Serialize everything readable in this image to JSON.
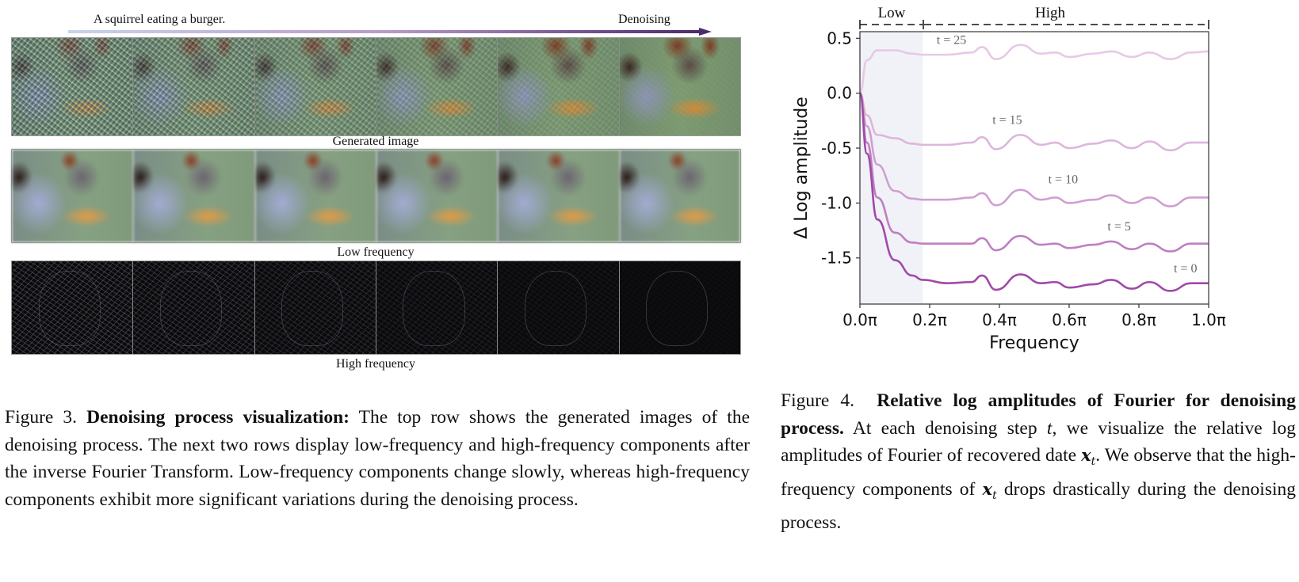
{
  "figure3": {
    "prompt": "A squirrel eating a burger.",
    "arrow_label": "Denoising",
    "arrow_gradient": [
      "#c9d3ea",
      "#b89bcc",
      "#4b2a6e"
    ],
    "rows": [
      {
        "label": "Generated image",
        "frames": 6
      },
      {
        "label": "Low frequency",
        "frames": 6
      },
      {
        "label": "High frequency",
        "frames": 6
      }
    ],
    "caption": {
      "prefix": "Figure 3.",
      "title": "Denoising process visualization:",
      "body": "The top row shows the generated images of the denoising process. The next two rows display low-frequency and high-frequency components after the inverse Fourier Transform. Low-frequency components change slowly, whereas high-frequency components exhibit more significant variations during the denoising process."
    }
  },
  "figure4": {
    "band_low": "Low",
    "band_high": "High",
    "caption": {
      "prefix": "Figure 4.",
      "title": "Relative log amplitudes of Fourier for denoising process.",
      "body_1": "At each denoising step",
      "var_t": "t",
      "body_2": ", we visualize the relative log amplitudes of Fourier of recovered date",
      "var_x": "x",
      "sub_t": "t",
      "body_3": ". We observe that the high-frequency components of",
      "body_4": "drops drastically during the denoising process."
    }
  },
  "chart_data": {
    "type": "line",
    "title": "",
    "xlabel": "Frequency",
    "ylabel": "Δ Log amplitude",
    "xlim": [
      0.0,
      1.0
    ],
    "ylim": [
      -1.92,
      0.56
    ],
    "x_ticks": [
      "0.0π",
      "0.2π",
      "0.4π",
      "0.6π",
      "0.8π",
      "1.0π"
    ],
    "y_ticks": [
      "0.5",
      "0.0",
      "-0.5",
      "-1.0",
      "-1.5"
    ],
    "shaded_region": {
      "x": [
        0.0,
        0.18
      ],
      "label": "Low",
      "color": "#f1f2f7"
    },
    "bands": [
      {
        "label": "Low",
        "x": [
          0.0,
          0.18
        ]
      },
      {
        "label": "High",
        "x": [
          0.18,
          1.0
        ]
      }
    ],
    "grid": false,
    "x": [
      0.0,
      0.02,
      0.05,
      0.1,
      0.15,
      0.18,
      0.25,
      0.32,
      0.35,
      0.39,
      0.46,
      0.52,
      0.56,
      0.6,
      0.67,
      0.72,
      0.78,
      0.83,
      0.89,
      0.95,
      1.0
    ],
    "series": [
      {
        "name": "t = 25",
        "color": "#e6c9e6",
        "values": [
          0.0,
          0.3,
          0.39,
          0.39,
          0.36,
          0.35,
          0.35,
          0.37,
          0.42,
          0.31,
          0.44,
          0.36,
          0.37,
          0.33,
          0.36,
          0.38,
          0.33,
          0.37,
          0.31,
          0.37,
          0.38
        ]
      },
      {
        "name": "t = 15",
        "color": "#dcb6dc",
        "values": [
          0.0,
          -0.2,
          -0.38,
          -0.41,
          -0.46,
          -0.47,
          -0.47,
          -0.45,
          -0.4,
          -0.51,
          -0.38,
          -0.47,
          -0.45,
          -0.5,
          -0.46,
          -0.43,
          -0.5,
          -0.44,
          -0.52,
          -0.45,
          -0.45
        ]
      },
      {
        "name": "t = 10",
        "color": "#cf9fd2",
        "values": [
          0.0,
          -0.3,
          -0.65,
          -0.89,
          -0.96,
          -0.97,
          -0.97,
          -0.95,
          -0.91,
          -1.02,
          -0.88,
          -0.97,
          -0.95,
          -1.0,
          -0.97,
          -0.93,
          -1.0,
          -0.95,
          -1.03,
          -0.95,
          -0.95
        ]
      },
      {
        "name": "t = 5",
        "color": "#be7fc2",
        "values": [
          0.0,
          -0.45,
          -0.95,
          -1.27,
          -1.36,
          -1.37,
          -1.37,
          -1.37,
          -1.32,
          -1.43,
          -1.3,
          -1.38,
          -1.37,
          -1.41,
          -1.38,
          -1.35,
          -1.42,
          -1.37,
          -1.44,
          -1.37,
          -1.37
        ]
      },
      {
        "name": "t = 0",
        "color": "#a04aa8",
        "values": [
          0.0,
          -0.55,
          -1.15,
          -1.52,
          -1.66,
          -1.7,
          -1.73,
          -1.72,
          -1.66,
          -1.79,
          -1.65,
          -1.73,
          -1.72,
          -1.77,
          -1.74,
          -1.7,
          -1.78,
          -1.72,
          -1.8,
          -1.73,
          -1.73
        ]
      }
    ],
    "annotations": [
      {
        "text": "t = 25",
        "x": 0.22,
        "y": 0.45
      },
      {
        "text": "t = 15",
        "x": 0.38,
        "y": -0.28
      },
      {
        "text": "t = 10",
        "x": 0.54,
        "y": -0.82
      },
      {
        "text": "t = 5",
        "x": 0.71,
        "y": -1.25
      },
      {
        "text": "t = 0",
        "x": 0.9,
        "y": -1.63
      }
    ]
  }
}
